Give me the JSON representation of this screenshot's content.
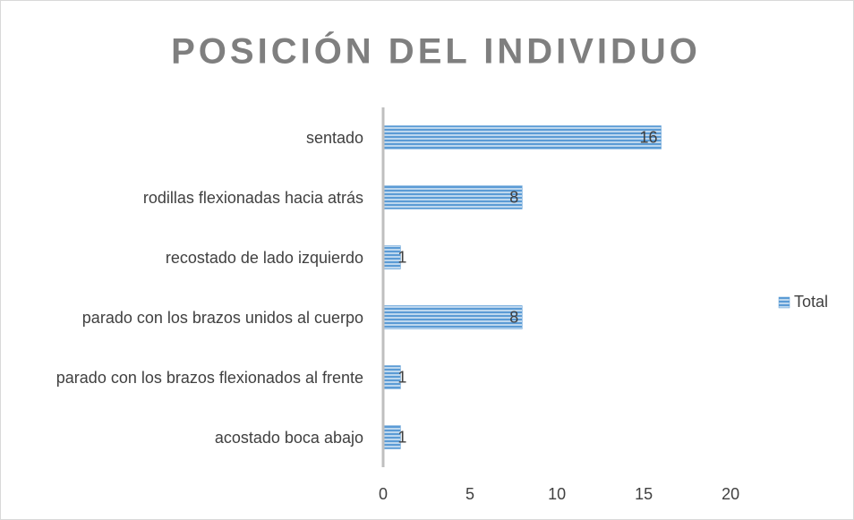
{
  "chart_data": {
    "type": "bar",
    "orientation": "horizontal",
    "title": "POSICIÓN DEL INDIVIDUO",
    "categories": [
      "sentado",
      "rodillas flexionadas hacia atrás",
      "recostado de lado izquierdo",
      "parado con los brazos unidos al cuerpo",
      "parado con los brazos flexionados al frente",
      "acostado boca abajo"
    ],
    "series": [
      {
        "name": "Total",
        "color": "#5b9bd5",
        "values": [
          16,
          8,
          1,
          8,
          1,
          1
        ]
      }
    ],
    "xlim": [
      0,
      22
    ],
    "xticks": [
      0,
      5,
      10,
      15,
      20
    ],
    "grid": false,
    "legend": "right"
  }
}
